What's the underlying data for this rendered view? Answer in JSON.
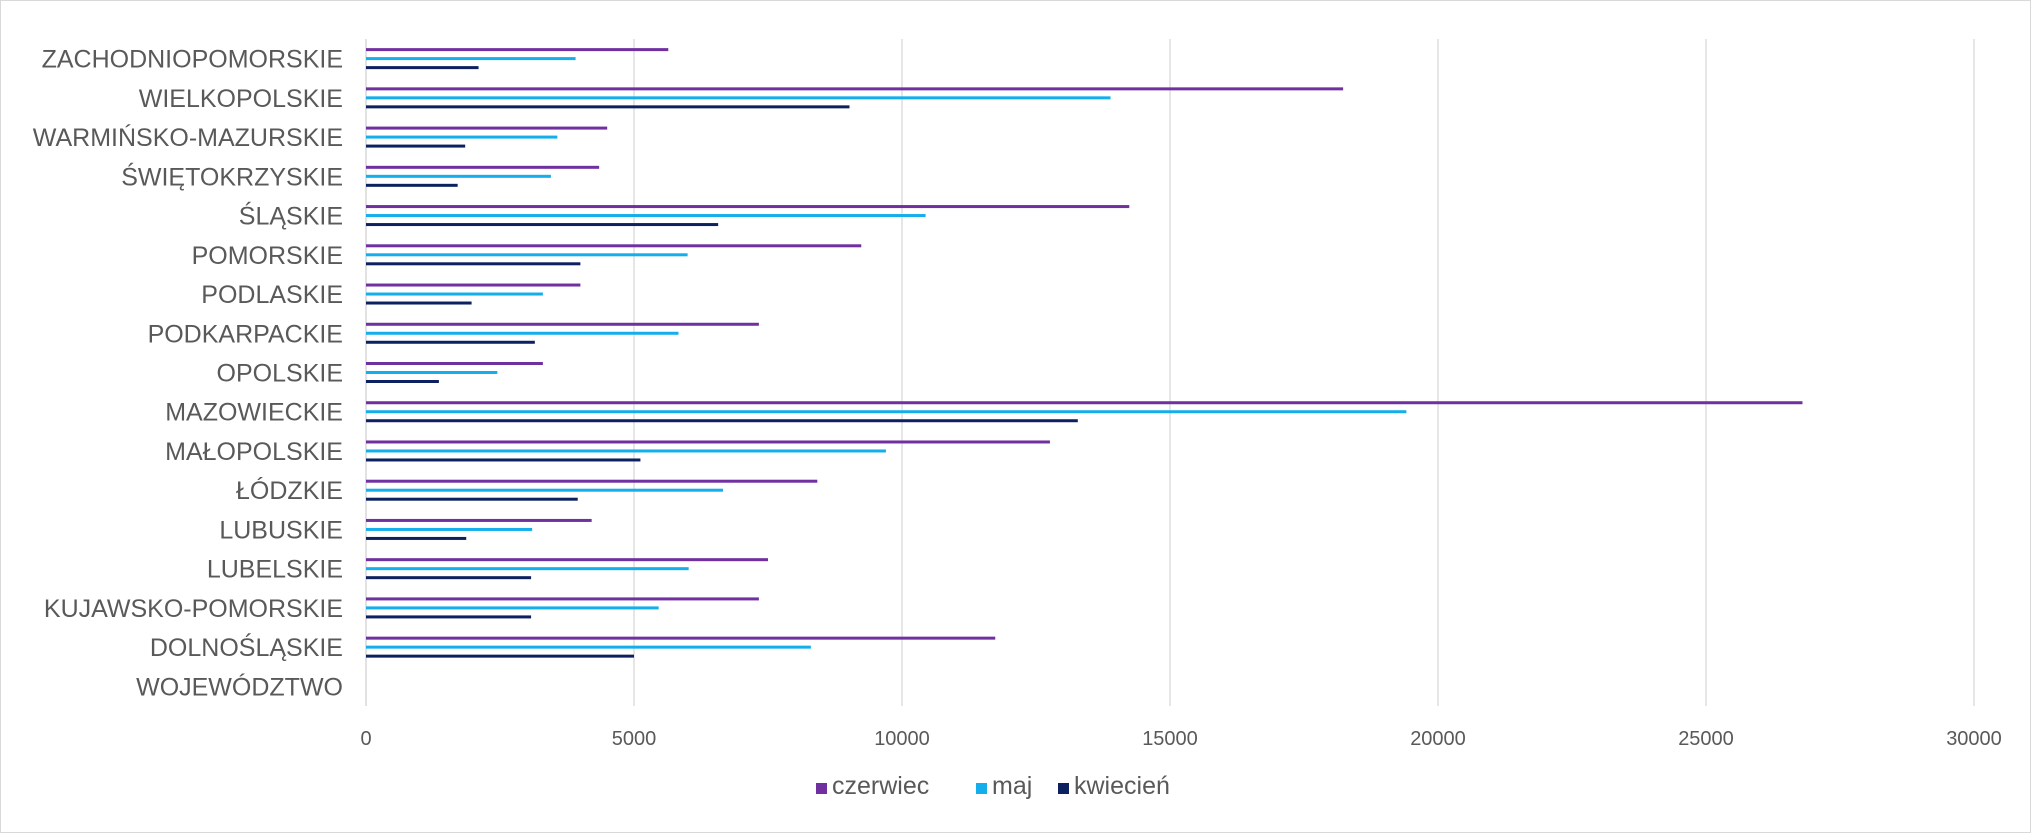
{
  "chart_data": {
    "type": "bar",
    "orientation": "horizontal",
    "title": "",
    "xlabel": "",
    "ylabel": "",
    "xlim": [
      0,
      30000
    ],
    "x_ticks": [
      "0",
      "5000",
      "10000",
      "15000",
      "20000",
      "25000",
      "30000"
    ],
    "grid": true,
    "legend_position": "bottom",
    "categories": [
      "WOJEWÓDZTWO",
      "DOLNOŚLĄSKIE",
      "KUJAWSKO-POMORSKIE",
      "LUBELSKIE",
      "LUBUSKIE",
      "ŁÓDZKIE",
      "MAŁOPOLSKIE",
      "MAZOWIECKIE",
      "OPOLSKIE",
      "PODKARPACKIE",
      "PODLASKIE",
      "POMORSKIE",
      "ŚLĄSKIE",
      "ŚWIĘTOKRZYSKIE",
      "WARMIŃSKO-MAZURSKIE",
      "WIELKOPOLSKIE",
      "ZACHODNIOPOMORSKIE"
    ],
    "series": [
      {
        "name": "kwiecień",
        "color": "#0d2161",
        "values": [
          null,
          5000,
          3080,
          3080,
          1870,
          3950,
          5120,
          13280,
          1360,
          3150,
          1970,
          4000,
          6570,
          1710,
          1850,
          9020,
          2100
        ]
      },
      {
        "name": "maj",
        "color": "#13aeeb",
        "values": [
          null,
          8300,
          5460,
          6020,
          3100,
          6660,
          9700,
          19410,
          2450,
          5830,
          3300,
          6000,
          10440,
          3450,
          3570,
          13890,
          3910
        ]
      },
      {
        "name": "czerwiec",
        "color": "#7030a0",
        "values": [
          null,
          11740,
          7330,
          7500,
          4210,
          8420,
          12760,
          26800,
          3300,
          7330,
          4000,
          9240,
          14240,
          4350,
          4500,
          18230,
          5640
        ]
      }
    ],
    "legend": [
      "czerwiec",
      "maj",
      "kwiecień"
    ]
  }
}
